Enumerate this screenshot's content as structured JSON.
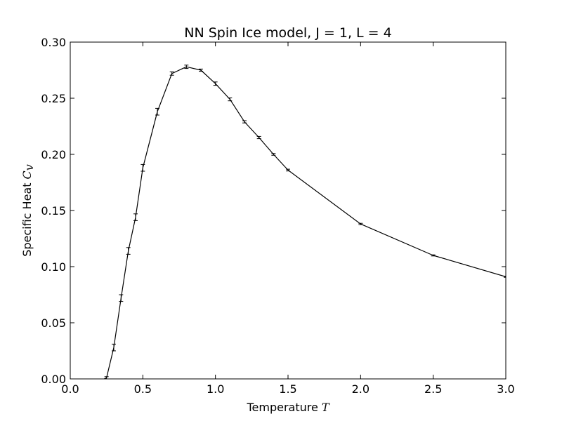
{
  "chart_data": {
    "type": "line",
    "title": "NN Spin Ice model, J = 1, L = 4",
    "xlabel": {
      "text": "Temperature",
      "symbol": "T"
    },
    "ylabel": {
      "text": "Specific Heat",
      "symbol": "C",
      "subscript": "v"
    },
    "xlim": [
      0.0,
      3.0
    ],
    "ylim": [
      0.0,
      0.3
    ],
    "xticks": [
      {
        "value": 0.0,
        "label": "0.0"
      },
      {
        "value": 0.5,
        "label": "0.5"
      },
      {
        "value": 1.0,
        "label": "1.0"
      },
      {
        "value": 1.5,
        "label": "1.5"
      },
      {
        "value": 2.0,
        "label": "2.0"
      },
      {
        "value": 2.5,
        "label": "2.5"
      },
      {
        "value": 3.0,
        "label": "3.0"
      }
    ],
    "yticks": [
      {
        "value": 0.0,
        "label": "0.00"
      },
      {
        "value": 0.05,
        "label": "0.05"
      },
      {
        "value": 0.1,
        "label": "0.10"
      },
      {
        "value": 0.15,
        "label": "0.15"
      },
      {
        "value": 0.2,
        "label": "0.20"
      },
      {
        "value": 0.25,
        "label": "0.25"
      },
      {
        "value": 0.3,
        "label": "0.30"
      }
    ],
    "grid": false,
    "line_color": "#000000",
    "series": [
      {
        "x": [
          0.2,
          0.25,
          0.3,
          0.35,
          0.4,
          0.45,
          0.5,
          0.6,
          0.7,
          0.8,
          0.9,
          1.0,
          1.1,
          1.2,
          1.3,
          1.4,
          1.5,
          2.0,
          2.5,
          3.0
        ],
        "y": [
          -0.002,
          0.001,
          0.028,
          0.072,
          0.114,
          0.144,
          0.188,
          0.238,
          0.272,
          0.278,
          0.275,
          0.263,
          0.249,
          0.229,
          0.215,
          0.2,
          0.186,
          0.138,
          0.11,
          0.091
        ],
        "err": [
          0.0005,
          0.001,
          0.003,
          0.003,
          0.003,
          0.003,
          0.003,
          0.003,
          0.0015,
          0.0015,
          0.001,
          0.0015,
          0.0013,
          0.001,
          0.001,
          0.0008,
          0.0008,
          0.0006,
          0.0005,
          0.0005
        ]
      }
    ]
  }
}
